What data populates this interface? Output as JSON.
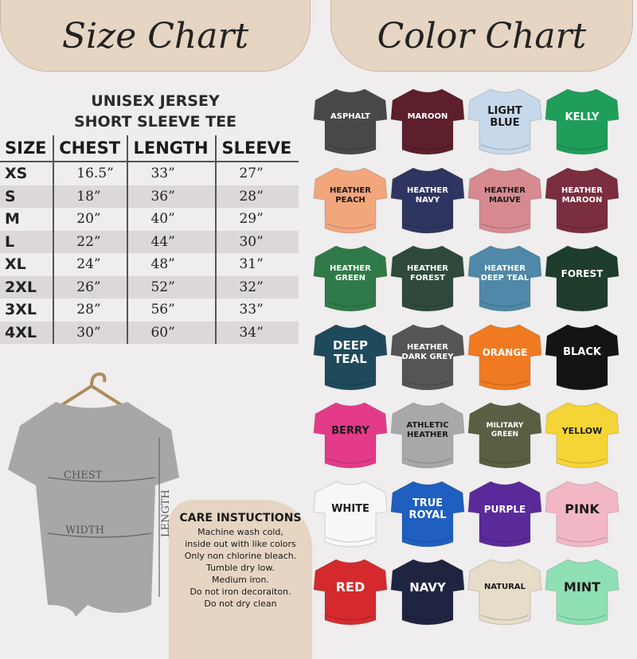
{
  "header": {
    "size_chart": "Size Chart",
    "color_chart": "Color Chart"
  },
  "size_table": {
    "title_line1": "UNISEX JERSEY",
    "title_line2": "SHORT SLEEVE TEE",
    "columns": [
      "SIZE",
      "CHEST",
      "LENGTH",
      "SLEEVE"
    ],
    "rows": [
      [
        "XS",
        "16.5”",
        "33”",
        "27”"
      ],
      [
        "S",
        "18”",
        "36”",
        "28”"
      ],
      [
        "M",
        "20”",
        "40”",
        "29”"
      ],
      [
        "L",
        "22”",
        "44”",
        "30”"
      ],
      [
        "XL",
        "24”",
        "48”",
        "31”"
      ],
      [
        "2XL",
        "26”",
        "52”",
        "32”"
      ],
      [
        "3XL",
        "28”",
        "56”",
        "33”"
      ],
      [
        "4XL",
        "30”",
        "60”",
        "34”"
      ]
    ]
  },
  "shirt_labels": {
    "chest": "CHEST",
    "width": "WIDTH",
    "length": "LENGTH"
  },
  "care": {
    "title": "CARE INSTUCTIONS",
    "lines": [
      "Machine wash cold,",
      "inside out with like colors",
      "Only non chlorine bleach.",
      "Tumble dry low.",
      "Medium iron.",
      "Do not iron decoraiton.",
      "Do not dry clean"
    ]
  },
  "colors": [
    {
      "name": "ASPHALT",
      "hex": "#48484b",
      "text": "#ffffff",
      "size": 10
    },
    {
      "name": "MAROON",
      "hex": "#5c1f2b",
      "text": "#ffffff",
      "size": 10
    },
    {
      "name": "LIGHT BLUE",
      "hex": "#c6d8ea",
      "text": "#1a1a1a",
      "size": 13
    },
    {
      "name": "KELLY",
      "hex": "#1f9e5a",
      "text": "#ffffff",
      "size": 13
    },
    {
      "name": "HEATHER PEACH",
      "hex": "#f2a67c",
      "text": "#1a1a1a",
      "size": 10
    },
    {
      "name": "HEATHER NAVY",
      "hex": "#2e3560",
      "text": "#ffffff",
      "size": 10
    },
    {
      "name": "HEATHER MAUVE",
      "hex": "#d68a90",
      "text": "#1a1a1a",
      "size": 10
    },
    {
      "name": "HEATHER MAROON",
      "hex": "#7a2e3e",
      "text": "#ffffff",
      "size": 10
    },
    {
      "name": "HEATHER GREEN",
      "hex": "#2f7a48",
      "text": "#ffffff",
      "size": 10
    },
    {
      "name": "HEATHER FOREST",
      "hex": "#2f4a3a",
      "text": "#ffffff",
      "size": 10
    },
    {
      "name": "HEATHER DEEP TEAL",
      "hex": "#4f88a8",
      "text": "#ffffff",
      "size": 10
    },
    {
      "name": "FOREST",
      "hex": "#1f3d2c",
      "text": "#ffffff",
      "size": 12
    },
    {
      "name": "DEEP TEAL",
      "hex": "#1e4a5c",
      "text": "#ffffff",
      "size": 15
    },
    {
      "name": "HEATHER DARK GREY",
      "hex": "#555557",
      "text": "#ffffff",
      "size": 10
    },
    {
      "name": "ORANGE",
      "hex": "#f07a22",
      "text": "#ffffff",
      "size": 12
    },
    {
      "name": "BLACK",
      "hex": "#141414",
      "text": "#ffffff",
      "size": 13
    },
    {
      "name": "BERRY",
      "hex": "#e43a8a",
      "text": "#1a1a1a",
      "size": 13
    },
    {
      "name": "ATHLETIC HEATHER",
      "hex": "#a8a8aa",
      "text": "#1a1a1a",
      "size": 10
    },
    {
      "name": "MILITARY GREEN",
      "hex": "#5c5e44",
      "text": "#ffffff",
      "size": 9
    },
    {
      "name": "YELLOW",
      "hex": "#f5d535",
      "text": "#1a1a1a",
      "size": 11
    },
    {
      "name": "WHITE",
      "hex": "#f7f7f7",
      "text": "#1a1a1a",
      "size": 13
    },
    {
      "name": "TRUE ROYAL",
      "hex": "#1f5fc0",
      "text": "#ffffff",
      "size": 13
    },
    {
      "name": "PURPLE",
      "hex": "#5a2a9a",
      "text": "#ffffff",
      "size": 12
    },
    {
      "name": "PINK",
      "hex": "#f2b7c4",
      "text": "#1a1a1a",
      "size": 16
    },
    {
      "name": "RED",
      "hex": "#d42a2e",
      "text": "#ffffff",
      "size": 16
    },
    {
      "name": "NAVY",
      "hex": "#1f2540",
      "text": "#ffffff",
      "size": 15
    },
    {
      "name": "NATURAL",
      "hex": "#e6dcc8",
      "text": "#1a1a1a",
      "size": 10
    },
    {
      "name": "MINT",
      "hex": "#8ee0b4",
      "text": "#1a1a1a",
      "size": 16
    }
  ]
}
